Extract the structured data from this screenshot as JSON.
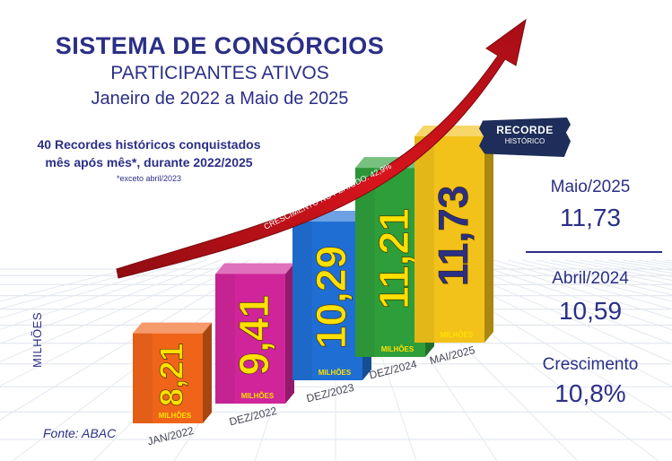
{
  "header": {
    "title": "SISTEMA DE CONSÓRCIOS",
    "subtitle": "PARTICIPANTES ATIVOS",
    "period": "Janeiro de 2022 a Maio de 2025"
  },
  "records_note": {
    "line1": "40 Recordes históricos conquistados",
    "line2": "mês após mês*, durante 2022/2025",
    "footnote": "*exceto abril/2023"
  },
  "arrow_label": "CRESCIMENTO NO PERÍODO: 42,9%",
  "badge": {
    "main": "RECORDE",
    "sub": "HISTÓRICO"
  },
  "side_panel": {
    "label1": "Maio/2025",
    "value1": "11,73",
    "label2": "Abril/2024",
    "value2": "10,59",
    "label3": "Crescimento",
    "value3": "10,8%"
  },
  "axis_unit": "MILHÕES",
  "source": "Fonte: ABAC",
  "colors": {
    "title": "#2b2f86",
    "arrow": "#c8141e",
    "bar_label": "#2b2f86",
    "unit_label": "#ffe000"
  },
  "chart_data": {
    "type": "bar",
    "categories": [
      "JAN/2022",
      "DEZ/2022",
      "DEZ/2023",
      "DEZ/2024",
      "MAI/2025"
    ],
    "values": [
      8.21,
      9.41,
      10.29,
      11.21,
      11.73
    ],
    "value_labels": [
      "8,21",
      "9,41",
      "10,29",
      "11,21",
      "11,73"
    ],
    "unit_label": "MILHÕES",
    "bar_colors": [
      "#f0641a",
      "#d0259a",
      "#1f6ed4",
      "#2e9e3a",
      "#f2c21a"
    ],
    "legend": "none"
  }
}
